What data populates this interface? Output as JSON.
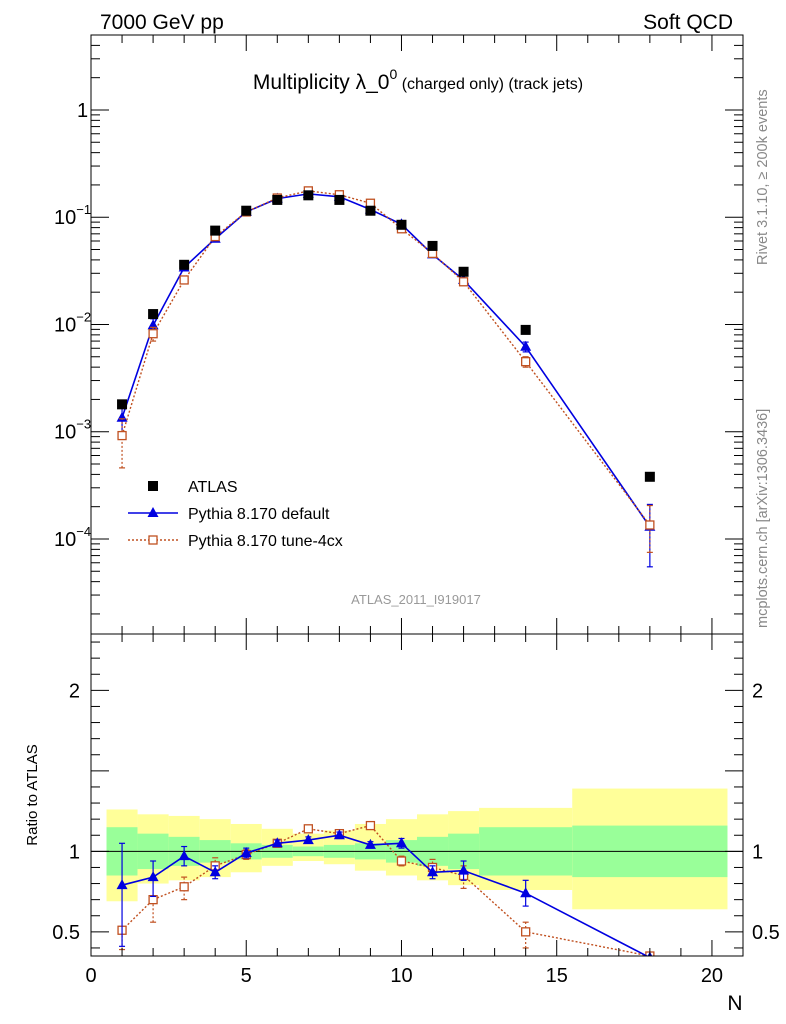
{
  "header": {
    "left": "7000 GeV pp",
    "right": "Soft QCD"
  },
  "side_labels": {
    "top": "Rivet 3.1.10, ≥ 200k events",
    "bottom": "mcplots.cern.ch [arXiv:1306.3436]"
  },
  "chart_data": [
    {
      "type": "scatter",
      "title_main": "Multiplicity λ_0",
      "title_sup": "0",
      "title_tail": " (charged only) (track jets)",
      "analysis_id": "ATLAS_2011_I919017",
      "yscale": "log",
      "xlim": [
        0,
        21
      ],
      "ylim": [
        1.3e-05,
        5
      ],
      "y_tick_labels": [
        {
          "base": "10",
          "exp": "−4",
          "value": 0.0001
        },
        {
          "base": "10",
          "exp": "−3",
          "value": 0.001
        },
        {
          "base": "10",
          "exp": "−2",
          "value": 0.01
        },
        {
          "base": "10",
          "exp": "−1",
          "value": 0.1
        },
        {
          "base": "1",
          "exp": "",
          "value": 1
        }
      ],
      "legend": {
        "position": "bottom-left",
        "entries": [
          "ATLAS",
          "Pythia 8.170 default",
          "Pythia 8.170 tune-4cx"
        ]
      },
      "series": [
        {
          "name": "ATLAS",
          "color": "#000000",
          "marker": "filled-square",
          "x": [
            1,
            2,
            3,
            4,
            5,
            6,
            7,
            8,
            9,
            10,
            11,
            12,
            14,
            18
          ],
          "y": [
            0.0018,
            0.0125,
            0.036,
            0.075,
            0.115,
            0.145,
            0.16,
            0.145,
            0.115,
            0.085,
            0.054,
            0.031,
            0.0089,
            0.00038
          ]
        },
        {
          "name": "Pythia 8.170 default",
          "color": "#0000e0",
          "marker": "filled-triangle",
          "line": "solid",
          "x": [
            1,
            2,
            3,
            4,
            5,
            6,
            7,
            8,
            9,
            10,
            11,
            12,
            14,
            18
          ],
          "y": [
            0.00135,
            0.0098,
            0.034,
            0.063,
            0.112,
            0.149,
            0.165,
            0.155,
            0.118,
            0.086,
            0.045,
            0.026,
            0.0062,
            0.00013
          ],
          "err_lo": [
            0.00035,
            0.0015,
            0,
            0,
            0,
            0,
            0,
            0,
            0,
            0,
            0,
            0,
            0.00065,
            7.5e-05
          ],
          "err_hi": [
            0.0005,
            0.0015,
            0,
            0,
            0,
            0,
            0,
            0,
            0,
            0,
            0,
            0,
            0.00065,
            8e-05
          ]
        },
        {
          "name": "Pythia 8.170 tune-4cx",
          "color": "#c05020",
          "marker": "open-square",
          "line": "dotted",
          "x": [
            1,
            2,
            3,
            4,
            5,
            6,
            7,
            8,
            9,
            10,
            11,
            12,
            14,
            18
          ],
          "y": [
            0.00092,
            0.0082,
            0.026,
            0.066,
            0.112,
            0.151,
            0.176,
            0.162,
            0.135,
            0.078,
            0.046,
            0.025,
            0.0045,
            0.000135
          ],
          "err_lo": [
            0.00046,
            0.0012,
            0.0018,
            0,
            0,
            0,
            0,
            0,
            0,
            0,
            0,
            0,
            0.0005,
            6e-05
          ],
          "err_hi": [
            0.0004,
            0.0012,
            0.0018,
            0,
            0,
            0,
            0,
            0,
            0,
            0,
            0,
            0,
            0.0005,
            7e-05
          ]
        }
      ]
    },
    {
      "type": "scatter",
      "ylabel": "Ratio to ATLAS",
      "xlabel": "N",
      "xlim": [
        0,
        21
      ],
      "ylim": [
        0.35,
        2.35
      ],
      "x_ticks": [
        0,
        5,
        10,
        15,
        20
      ],
      "y_ticks": [
        0.5,
        1,
        2
      ],
      "y_tick_labels": [
        "0.5",
        "1",
        "2"
      ],
      "bands": {
        "edges": [
          0.5,
          1.5,
          2.5,
          3.5,
          4.5,
          5.5,
          6.5,
          7.5,
          8.5,
          9.5,
          10.5,
          11.5,
          12.5,
          15.5,
          20.5
        ],
        "stat_lo": [
          0.85,
          0.89,
          0.91,
          0.93,
          0.95,
          0.96,
          0.97,
          0.96,
          0.95,
          0.93,
          0.91,
          0.89,
          0.85,
          0.84
        ],
        "stat_hi": [
          1.15,
          1.11,
          1.09,
          1.07,
          1.05,
          1.04,
          1.03,
          1.04,
          1.05,
          1.07,
          1.09,
          1.11,
          1.15,
          1.16
        ],
        "tot_lo": [
          0.69,
          0.8,
          0.82,
          0.84,
          0.87,
          0.91,
          0.94,
          0.92,
          0.88,
          0.85,
          0.82,
          0.79,
          0.76,
          0.64
        ],
        "tot_hi": [
          1.26,
          1.23,
          1.22,
          1.2,
          1.17,
          1.14,
          1.11,
          1.13,
          1.17,
          1.2,
          1.23,
          1.25,
          1.27,
          1.39
        ],
        "stat_color": "#99ff99",
        "total_color": "#ffff99"
      },
      "series": [
        {
          "name": "Pythia 8.170 default",
          "color": "#0000e0",
          "marker": "filled-triangle",
          "line": "solid",
          "x": [
            1,
            2,
            3,
            4,
            5,
            6,
            7,
            8,
            9,
            10,
            11,
            12,
            14,
            18
          ],
          "y": [
            0.79,
            0.84,
            0.97,
            0.87,
            0.99,
            1.05,
            1.07,
            1.1,
            1.04,
            1.05,
            0.87,
            0.88,
            0.74,
            0.34
          ],
          "err_lo": [
            0.38,
            0.12,
            0.06,
            0.04,
            0.03,
            0.02,
            0.02,
            0.02,
            0.02,
            0.03,
            0.04,
            0.06,
            0.08,
            0
          ],
          "err_hi": [
            0.26,
            0.1,
            0.06,
            0.04,
            0.03,
            0.02,
            0.02,
            0.02,
            0.02,
            0.03,
            0.04,
            0.06,
            0.08,
            0
          ]
        },
        {
          "name": "Pythia 8.170 tune-4cx",
          "color": "#c05020",
          "marker": "open-square",
          "line": "dotted",
          "x": [
            1,
            2,
            3,
            4,
            5,
            6,
            7,
            8,
            9,
            10,
            11,
            12,
            14,
            18
          ],
          "y": [
            0.51,
            0.7,
            0.78,
            0.91,
            0.98,
            1.05,
            1.14,
            1.11,
            1.16,
            0.94,
            0.9,
            0.85,
            0.5,
            0.35
          ],
          "err_lo": [
            0.12,
            0.14,
            0.08,
            0.05,
            0.03,
            0.02,
            0.02,
            0.02,
            0.02,
            0.03,
            0.05,
            0.08,
            0.1,
            0
          ],
          "err_hi": [
            0,
            0,
            0.06,
            0.05,
            0.03,
            0.02,
            0.02,
            0.02,
            0.02,
            0.03,
            0.05,
            0.06,
            0.06,
            0
          ]
        }
      ]
    }
  ]
}
